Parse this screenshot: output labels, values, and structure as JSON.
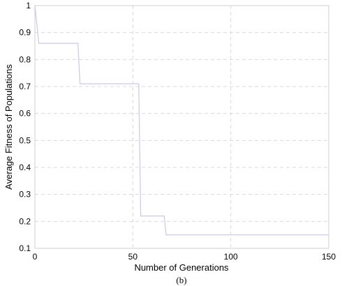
{
  "chart_data": {
    "type": "line",
    "title": "",
    "xlabel": "Number of Generations",
    "ylabel": "Average Fitness of Populations",
    "caption": "(b)",
    "xlim": [
      0,
      150
    ],
    "ylim": [
      0.1,
      1
    ],
    "xticks": [
      0,
      50,
      100,
      150
    ],
    "yticks": [
      0.1,
      0.2,
      0.3,
      0.4,
      0.5,
      0.6,
      0.7,
      0.8,
      0.9,
      1
    ],
    "ytick_labels": [
      "0.1",
      "0.2",
      "0.3",
      "0.4",
      "0.5",
      "0.6",
      "0.7",
      "0.8",
      "0.9",
      "1"
    ],
    "grid": true,
    "line_color": "#c8c8e8",
    "grid_color": "#d9d9d9",
    "series": [
      {
        "x": [
          0,
          2,
          22,
          23,
          53,
          54,
          66,
          67,
          150
        ],
        "y": [
          1,
          0.86,
          0.86,
          0.71,
          0.71,
          0.22,
          0.22,
          0.15,
          0.15
        ]
      }
    ]
  }
}
